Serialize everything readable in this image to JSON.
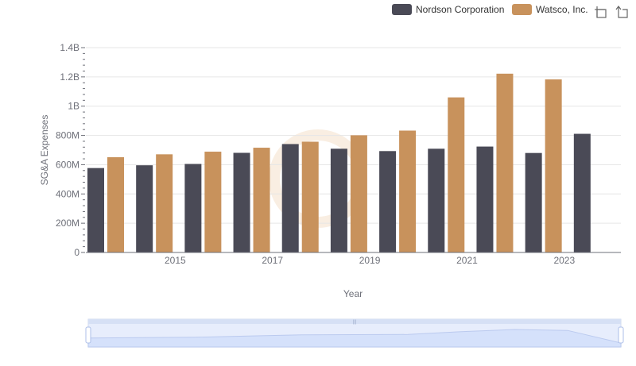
{
  "chart_data": {
    "type": "bar",
    "title": "",
    "xlabel": "Year",
    "ylabel": "SG&A Expenses",
    "ylim": [
      0,
      1400000000
    ],
    "yticks": [
      {
        "value": 0,
        "label": "0"
      },
      {
        "value": 200000000,
        "label": "200M"
      },
      {
        "value": 400000000,
        "label": "400M"
      },
      {
        "value": 600000000,
        "label": "600M"
      },
      {
        "value": 800000000,
        "label": "800M"
      },
      {
        "value": 1000000000,
        "label": "1B"
      },
      {
        "value": 1200000000,
        "label": "1.2B"
      },
      {
        "value": 1400000000,
        "label": "1.4B"
      }
    ],
    "categories": [
      "2014",
      "2015",
      "2016",
      "2017",
      "2018",
      "2019",
      "2020",
      "2021",
      "2022",
      "2023",
      "2024"
    ],
    "xtick_labels": [
      "2015",
      "2017",
      "2019",
      "2021",
      "2023"
    ],
    "grid": true,
    "legend_position": "top-right",
    "series": [
      {
        "name": "Nordson Corporation",
        "color": "#4a4a56",
        "values": [
          577000000,
          596000000,
          605000000,
          681000000,
          741000000,
          709000000,
          693000000,
          709000000,
          724000000,
          680000000,
          811000000
        ]
      },
      {
        "name": "Watsco, Inc.",
        "color": "#c8925c",
        "values": [
          651000000,
          671000000,
          689000000,
          716000000,
          757000000,
          801000000,
          833000000,
          1060000000,
          1222000000,
          1183000000,
          null
        ]
      }
    ]
  },
  "toolbox": {
    "icons": [
      "zoom-icon",
      "restore-icon"
    ]
  },
  "datazoom": {
    "range_start": 0,
    "range_end": 100,
    "fill_color": "#d6e2fb",
    "border_color": "#aebfe8"
  }
}
